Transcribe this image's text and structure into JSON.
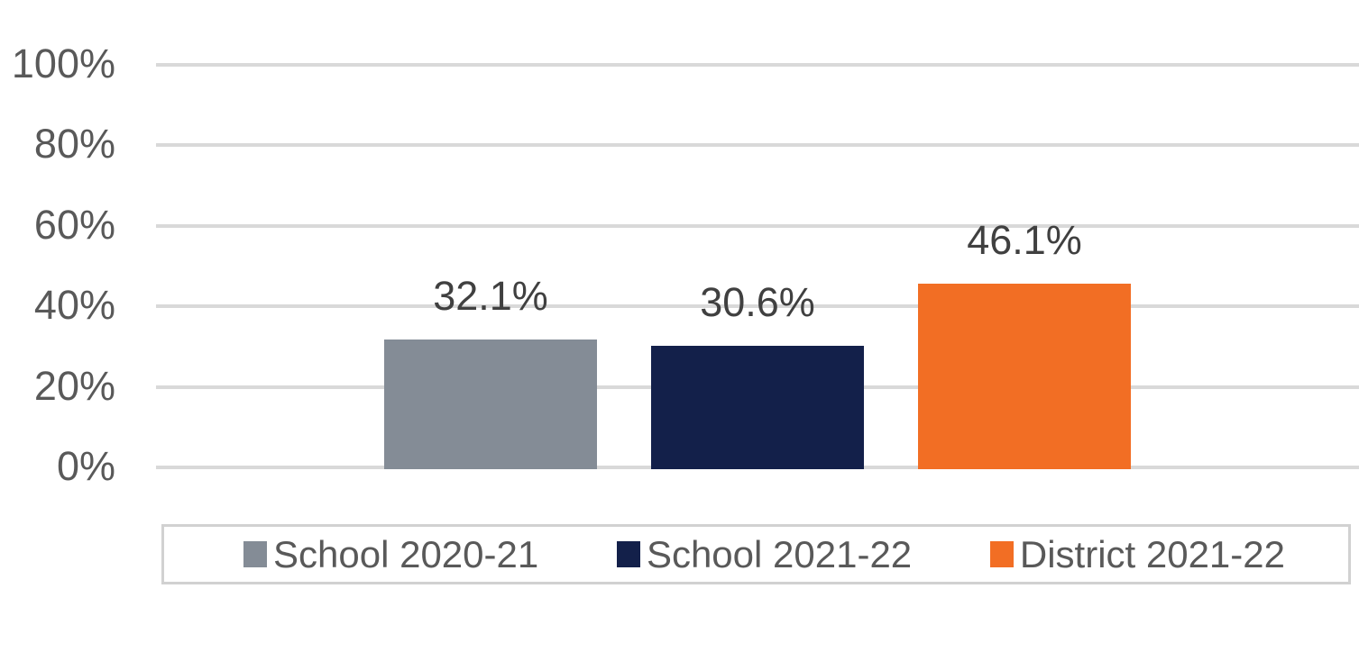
{
  "chart_data": {
    "type": "bar",
    "title": "",
    "categories": [
      ""
    ],
    "series": [
      {
        "name": "School 2020-21",
        "value": 32.1,
        "label": "32.1%",
        "color": "#848C96"
      },
      {
        "name": "School 2021-22",
        "value": 30.6,
        "label": "30.6%",
        "color": "#13204A"
      },
      {
        "name": "District 2021-22",
        "value": 46.1,
        "label": "46.1%",
        "color": "#F26E24"
      }
    ],
    "yticks": [
      {
        "value": 0,
        "label": "0%"
      },
      {
        "value": 20,
        "label": "20%"
      },
      {
        "value": 40,
        "label": "40%"
      },
      {
        "value": 60,
        "label": "60%"
      },
      {
        "value": 80,
        "label": "80%"
      },
      {
        "value": 100,
        "label": "100%"
      }
    ],
    "ylim": [
      0,
      100
    ],
    "grid": true,
    "legend_position": "bottom"
  },
  "colors": {
    "background": "#ffffff",
    "gridline": "#d9d9d9",
    "axis_label": "#595959",
    "data_label": "#404040",
    "legend_text": "#595959",
    "legend_border": "#d1d1d1"
  }
}
